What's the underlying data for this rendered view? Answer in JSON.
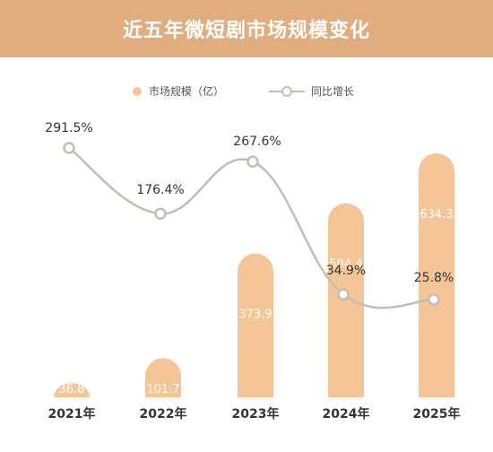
{
  "header": {
    "title": "近五年微短剧市场规模变化"
  },
  "colors": {
    "bar": "#f3c597",
    "line": "#c3beb4",
    "header_bg": "#e2ad7e"
  },
  "chart_data": {
    "type": "bar+line",
    "title": "近五年微短剧市场规模变化",
    "categories": [
      "2021年",
      "2022年",
      "2023年",
      "2024年",
      "2025年"
    ],
    "legend": {
      "placement": "top-center"
    },
    "series": [
      {
        "name": "市场规模（亿）",
        "type": "bar",
        "values": [
          36.8,
          101.7,
          373.9,
          504.4,
          634.3
        ],
        "labels": [
          "36.8",
          "101.7",
          "373.9",
          "504.4",
          "634.3"
        ]
      },
      {
        "name": "同比增长",
        "type": "line",
        "values": [
          291.5,
          176.4,
          267.6,
          34.9,
          25.8
        ],
        "labels": [
          "291.5%",
          "176.4%",
          "267.6%",
          "34.9%",
          "25.8%"
        ]
      }
    ],
    "grid": false
  }
}
